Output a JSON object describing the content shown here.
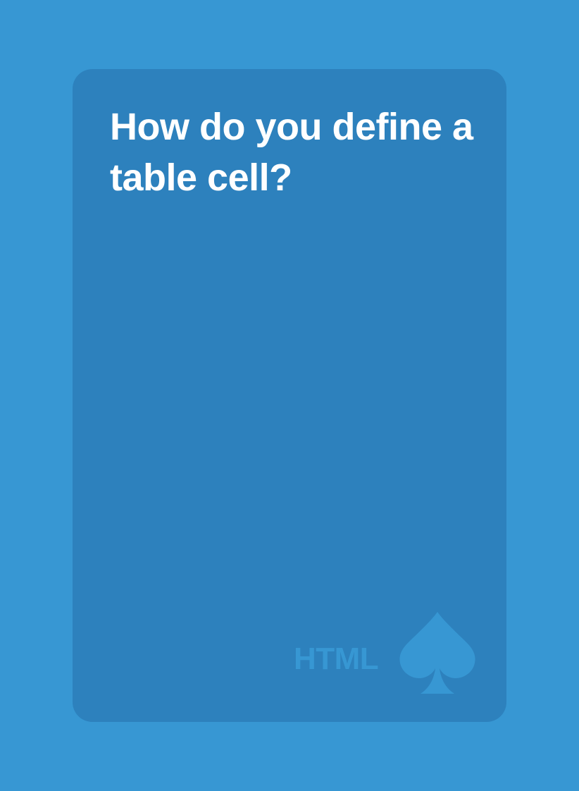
{
  "card": {
    "question": "How do you define a table cell?",
    "category": "HTML",
    "suit_icon": "spade-icon"
  },
  "colors": {
    "background": "#3797d3",
    "card": "#2d81bd",
    "text": "#ffffff",
    "accent": "#3797d3"
  }
}
